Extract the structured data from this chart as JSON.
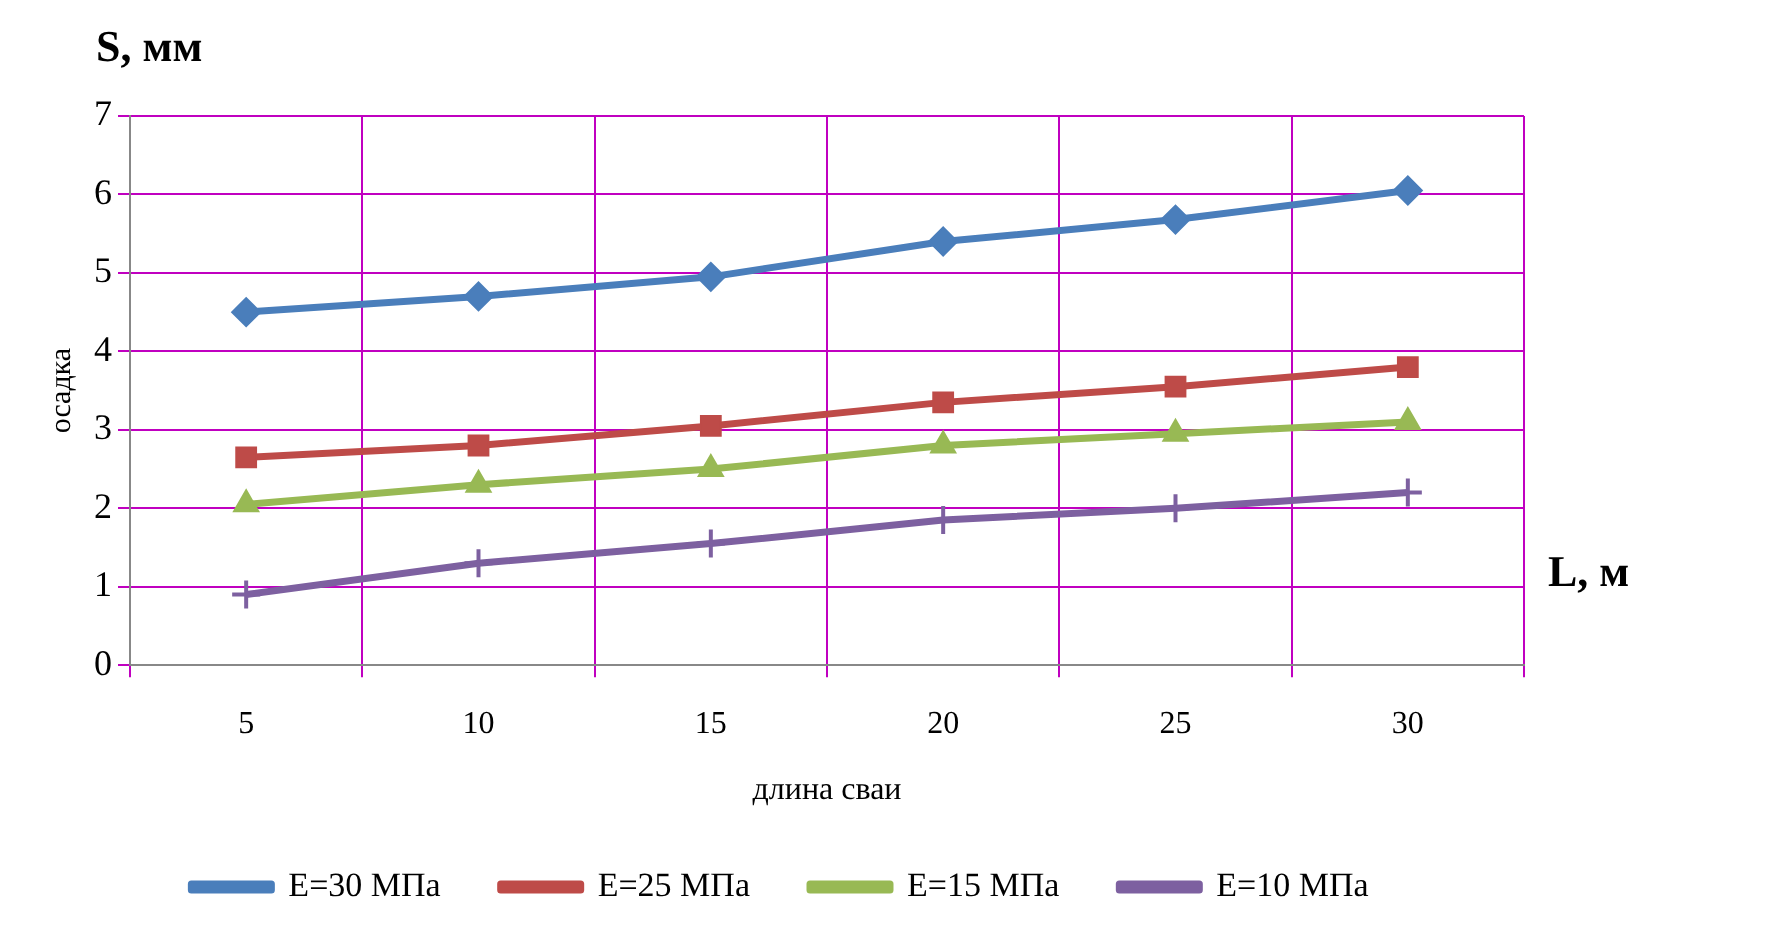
{
  "chart_data": {
    "type": "line",
    "xlabel": "длина сваи",
    "ylabel": "осадка",
    "annotations": [
      "S, мм",
      "L, м"
    ],
    "categories": [
      "5",
      "10",
      "15",
      "20",
      "25",
      "30"
    ],
    "ylim": [
      0,
      7
    ],
    "yticks": [
      0,
      1,
      2,
      3,
      4,
      5,
      6,
      7
    ],
    "grid": true,
    "legend": "bottom",
    "series": [
      {
        "name": "E=30 МПа",
        "color": "#4a7ebb",
        "marker": "diamond",
        "values": [
          4.5,
          4.7,
          4.95,
          5.4,
          5.68,
          6.05
        ]
      },
      {
        "name": "E=25 МПа",
        "color": "#be4b48",
        "marker": "square",
        "values": [
          2.65,
          2.8,
          3.05,
          3.35,
          3.55,
          3.8
        ]
      },
      {
        "name": "E=15 МПа",
        "color": "#98b954",
        "marker": "triangle",
        "values": [
          2.05,
          2.3,
          2.5,
          2.8,
          2.95,
          3.1
        ]
      },
      {
        "name": "E=10 МПа",
        "color": "#7d60a0",
        "marker": "cross",
        "values": [
          0.9,
          1.3,
          1.55,
          1.85,
          2.0,
          2.2
        ]
      }
    ]
  }
}
